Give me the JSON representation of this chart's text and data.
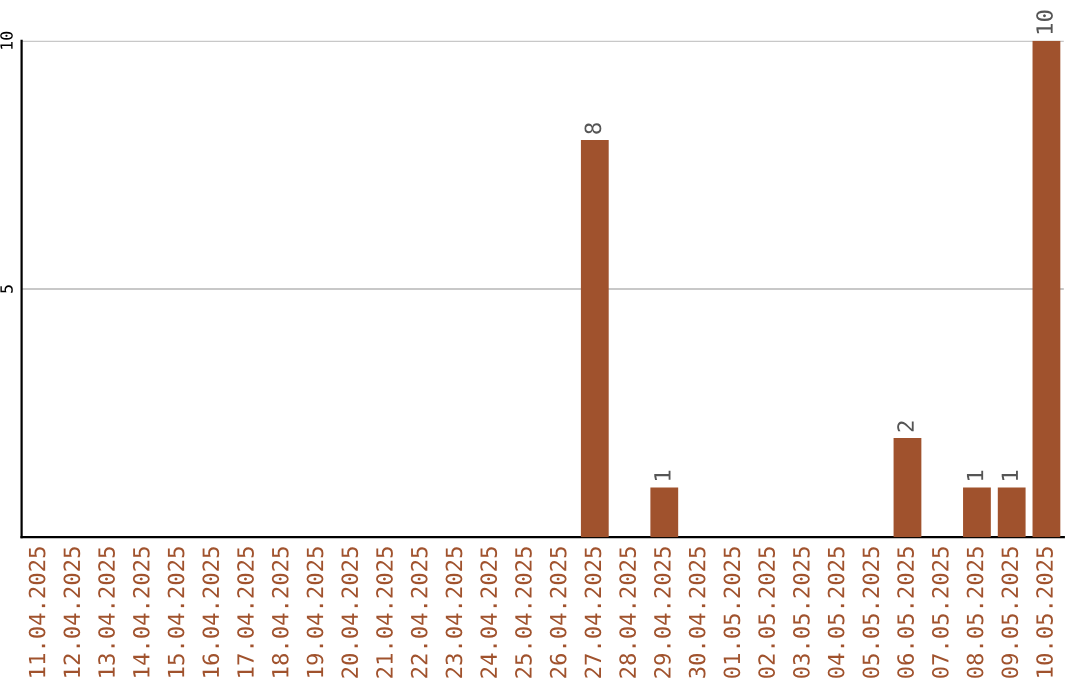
{
  "chart_data": {
    "type": "bar",
    "categories": [
      "11.04.2025",
      "12.04.2025",
      "13.04.2025",
      "14.04.2025",
      "15.04.2025",
      "16.04.2025",
      "17.04.2025",
      "18.04.2025",
      "19.04.2025",
      "20.04.2025",
      "21.04.2025",
      "22.04.2025",
      "23.04.2025",
      "24.04.2025",
      "25.04.2025",
      "26.04.2025",
      "27.04.2025",
      "28.04.2025",
      "29.04.2025",
      "30.04.2025",
      "01.05.2025",
      "02.05.2025",
      "03.05.2025",
      "04.05.2025",
      "05.05.2025",
      "06.05.2025",
      "07.05.2025",
      "08.05.2025",
      "09.05.2025",
      "10.05.2025"
    ],
    "values": [
      0,
      0,
      0,
      0,
      0,
      0,
      0,
      0,
      0,
      0,
      0,
      0,
      0,
      0,
      0,
      0,
      8,
      0,
      1,
      0,
      0,
      0,
      0,
      0,
      0,
      2,
      0,
      1,
      1,
      10
    ],
    "value_labels": [
      null,
      null,
      null,
      null,
      null,
      null,
      null,
      null,
      null,
      null,
      null,
      null,
      null,
      null,
      null,
      null,
      "8",
      null,
      "1",
      null,
      null,
      null,
      null,
      null,
      null,
      "2",
      null,
      "1",
      "1",
      "10"
    ],
    "color": "#a0522d",
    "ylim": [
      0,
      10
    ],
    "yticks": [
      5,
      10
    ],
    "grid": "y"
  }
}
